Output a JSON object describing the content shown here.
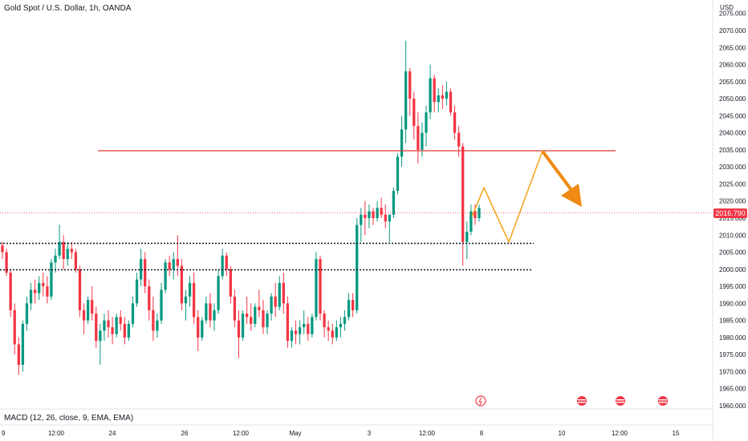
{
  "header": {
    "title": "Gold Spot / U.S. Dollar, 1h, OANDA",
    "currency": "USD",
    "indicator": "MACD (12, 26, close, 9, EMA, EMA)"
  },
  "chart_data": {
    "type": "candlestick",
    "title": "Gold Spot / U.S. Dollar, 1h, OANDA",
    "ylim": [
      1960,
      2075
    ],
    "y_ticks": [
      2075,
      2070,
      2065,
      2060,
      2055,
      2050,
      2045,
      2040,
      2035,
      2030,
      2025,
      2020,
      2015,
      2010,
      2005,
      2000,
      1995,
      1990,
      1985,
      1980,
      1975,
      1970,
      1965,
      1960
    ],
    "x_ticks": [
      {
        "label": "9",
        "x": 0
      },
      {
        "label": "12:00",
        "x": 1
      },
      {
        "label": "24",
        "x": 2
      },
      {
        "label": "26",
        "x": 3
      },
      {
        "label": "12:00",
        "x": 4
      },
      {
        "label": "May",
        "x": 5
      },
      {
        "label": "3",
        "x": 6
      },
      {
        "label": "12:00",
        "x": 7
      },
      {
        "label": "8",
        "x": 8
      },
      {
        "label": "10",
        "x": 9
      },
      {
        "label": "12:00",
        "x": 10
      },
      {
        "label": "15",
        "x": 11
      }
    ],
    "current_price": "2016.790",
    "resistance_level": 2035,
    "support_levels": [
      2008,
      2001
    ],
    "projection_path": [
      [
        2016,
        2008
      ],
      [
        2024,
        2008
      ],
      [
        2008,
        2008
      ],
      [
        2035,
        2035
      ],
      [
        2018,
        2018
      ]
    ],
    "series": [
      {
        "points": [
          [
            2007,
            2008,
            2003,
            2005
          ],
          [
            2005,
            2006,
            1998,
            1999
          ],
          [
            1999,
            2000,
            1986,
            1988
          ],
          [
            1988,
            1990,
            1975,
            1978
          ],
          [
            1978,
            1980,
            1969,
            1972
          ],
          [
            1972,
            1985,
            1970,
            1984
          ],
          [
            1984,
            1992,
            1982,
            1990
          ],
          [
            1990,
            1996,
            1988,
            1994
          ],
          [
            1994,
            1997,
            1990,
            1993
          ],
          [
            1993,
            1998,
            1991,
            1996
          ],
          [
            1996,
            1999,
            1992,
            1995
          ],
          [
            1995,
            1998,
            1990,
            1992
          ],
          [
            1992,
            2003,
            1991,
            2002
          ],
          [
            2002,
            2006,
            1999,
            2004
          ],
          [
            2004,
            2013,
            2003,
            2008
          ],
          [
            2008,
            2010,
            2000,
            2003
          ],
          [
            2003,
            2008,
            2001,
            2006
          ],
          [
            2006,
            2008,
            2003,
            2005
          ],
          [
            2005,
            2006,
            1999,
            2000
          ],
          [
            2000,
            2001,
            1986,
            1988
          ],
          [
            1988,
            1990,
            1981,
            1985
          ],
          [
            1985,
            1992,
            1984,
            1991
          ],
          [
            1991,
            1995,
            1985,
            1987
          ],
          [
            1987,
            1989,
            1977,
            1979
          ],
          [
            1979,
            1984,
            1972,
            1982
          ],
          [
            1982,
            1987,
            1979,
            1985
          ],
          [
            1985,
            1988,
            1980,
            1983
          ],
          [
            1983,
            1986,
            1978,
            1981
          ],
          [
            1981,
            1987,
            1980,
            1986
          ],
          [
            1986,
            1988,
            1982,
            1984
          ],
          [
            1984,
            1986,
            1978,
            1980
          ],
          [
            1980,
            1985,
            1979,
            1984
          ],
          [
            1984,
            1992,
            1983,
            1990
          ],
          [
            1990,
            1999,
            1989,
            1997
          ],
          [
            1997,
            2006,
            1995,
            2003
          ],
          [
            2003,
            2005,
            1993,
            1995
          ],
          [
            1995,
            1997,
            1985,
            1988
          ],
          [
            1988,
            1992,
            1979,
            1982
          ],
          [
            1982,
            1987,
            1980,
            1985
          ],
          [
            1985,
            1996,
            1984,
            1994
          ],
          [
            1994,
            2003,
            1993,
            2002
          ],
          [
            2002,
            2004,
            1998,
            2000
          ],
          [
            2000,
            2005,
            1997,
            2003
          ],
          [
            2003,
            2010,
            1998,
            2001
          ],
          [
            2001,
            2003,
            1988,
            1990
          ],
          [
            1990,
            1994,
            1985,
            1992
          ],
          [
            1992,
            1998,
            1989,
            1996
          ],
          [
            1996,
            1999,
            1984,
            1986
          ],
          [
            1986,
            1988,
            1976,
            1980
          ],
          [
            1980,
            1986,
            1979,
            1985
          ],
          [
            1985,
            1992,
            1984,
            1990
          ],
          [
            1990,
            1993,
            1983,
            1985
          ],
          [
            1985,
            1990,
            1982,
            1988
          ],
          [
            1988,
            2000,
            1987,
            1998
          ],
          [
            1998,
            2006,
            1997,
            2004
          ],
          [
            2004,
            2005,
            1998,
            2000
          ],
          [
            2000,
            2001,
            1990,
            1992
          ],
          [
            1992,
            1994,
            1983,
            1985
          ],
          [
            1985,
            1988,
            1974,
            1980
          ],
          [
            1980,
            1988,
            1979,
            1987
          ],
          [
            1987,
            1992,
            1984,
            1986
          ],
          [
            1986,
            1990,
            1982,
            1984
          ],
          [
            1984,
            1990,
            1983,
            1989
          ],
          [
            1989,
            1994,
            1986,
            1988
          ],
          [
            1988,
            1991,
            1981,
            1983
          ],
          [
            1983,
            1988,
            1981,
            1987
          ],
          [
            1987,
            1993,
            1985,
            1992
          ],
          [
            1992,
            1996,
            1986,
            1989
          ],
          [
            1989,
            1998,
            1988,
            1996
          ],
          [
            1996,
            1999,
            1987,
            1990
          ],
          [
            1990,
            1992,
            1977,
            1979
          ],
          [
            1979,
            1983,
            1977,
            1982
          ],
          [
            1982,
            1985,
            1978,
            1981
          ],
          [
            1981,
            1985,
            1978,
            1983
          ],
          [
            1983,
            1988,
            1981,
            1984
          ],
          [
            1984,
            1986,
            1979,
            1981
          ],
          [
            1981,
            1987,
            1980,
            1986
          ],
          [
            1986,
            2005,
            1985,
            2003
          ],
          [
            2003,
            2004,
            1985,
            1987
          ],
          [
            1987,
            1988,
            1980,
            1983
          ],
          [
            1983,
            1985,
            1979,
            1982
          ],
          [
            1982,
            1984,
            1978,
            1980
          ],
          [
            1980,
            1985,
            1979,
            1983
          ],
          [
            1983,
            1986,
            1980,
            1984
          ],
          [
            1984,
            1988,
            1982,
            1986
          ],
          [
            1986,
            1993,
            1985,
            1991
          ],
          [
            1991,
            1993,
            1986,
            1988
          ],
          [
            1988,
            2015,
            1987,
            2013
          ],
          [
            2013,
            2018,
            2008,
            2016
          ],
          [
            2016,
            2020,
            2010,
            2015
          ],
          [
            2015,
            2019,
            2012,
            2017
          ],
          [
            2017,
            2018,
            2013,
            2015
          ],
          [
            2015,
            2020,
            2014,
            2018
          ],
          [
            2018,
            2021,
            2015,
            2016
          ],
          [
            2016,
            2019,
            2012,
            2014
          ],
          [
            2014,
            2016,
            2008,
            2016
          ],
          [
            2016,
            2024,
            2015,
            2023
          ],
          [
            2023,
            2034,
            2022,
            2033
          ],
          [
            2033,
            2045,
            2030,
            2041
          ],
          [
            2041,
            2067,
            2037,
            2058
          ],
          [
            2058,
            2059,
            2045,
            2050
          ],
          [
            2050,
            2052,
            2038,
            2042
          ],
          [
            2042,
            2046,
            2031,
            2035
          ],
          [
            2035,
            2043,
            2033,
            2040
          ],
          [
            2040,
            2048,
            2036,
            2046
          ],
          [
            2046,
            2060,
            2044,
            2056
          ],
          [
            2056,
            2057,
            2046,
            2049
          ],
          [
            2049,
            2053,
            2046,
            2051
          ],
          [
            2051,
            2054,
            2047,
            2050
          ],
          [
            2050,
            2055,
            2048,
            2052
          ],
          [
            2052,
            2053,
            2045,
            2046
          ],
          [
            2046,
            2048,
            2038,
            2040
          ],
          [
            2040,
            2042,
            2033,
            2036
          ],
          [
            2036,
            2037,
            2001,
            2008
          ],
          [
            2008,
            2014,
            2003,
            2011
          ],
          [
            2011,
            2019,
            2010,
            2017
          ],
          [
            2017,
            2019,
            2013,
            2015
          ],
          [
            2015,
            2019,
            2014,
            2018
          ]
        ]
      }
    ]
  }
}
